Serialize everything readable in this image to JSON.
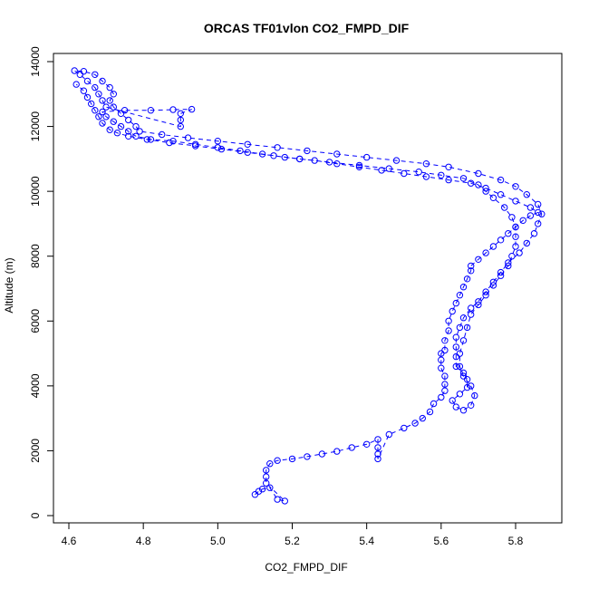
{
  "chart_data": {
    "type": "scatter",
    "title": "ORCAS TF01vlon CO2_FMPD_DIF",
    "xlabel": "CO2_FMPD_DIF",
    "ylabel": "Altitude (m)",
    "xlim": [
      4.6,
      5.88
    ],
    "ylim": [
      -200,
      14200
    ],
    "x_ticks": [
      4.6,
      4.8,
      5.0,
      5.2,
      5.4,
      5.6,
      5.8
    ],
    "x_tick_labels": [
      "4.6",
      "4.8",
      "5.0",
      "5.2",
      "5.4",
      "5.6",
      "5.8"
    ],
    "y_ticks": [
      0,
      2000,
      4000,
      6000,
      8000,
      10000,
      12000,
      14000
    ],
    "y_tick_labels": [
      "0",
      "2000",
      "4000",
      "6000",
      "8000",
      "10000",
      "12000",
      "14000"
    ],
    "marker": "open-circle",
    "color": "#0000ff",
    "connected_dashed": true,
    "grid": false,
    "legend": "none",
    "series": [
      {
        "points": [
          [
            5.1,
            650
          ],
          [
            5.11,
            750
          ],
          [
            5.12,
            820
          ],
          [
            5.14,
            860
          ],
          [
            5.16,
            500
          ],
          [
            5.18,
            450
          ],
          [
            5.13,
            1000
          ],
          [
            5.13,
            1200
          ],
          [
            5.13,
            1400
          ],
          [
            5.14,
            1600
          ],
          [
            5.16,
            1700
          ],
          [
            5.2,
            1750
          ],
          [
            5.24,
            1820
          ],
          [
            5.28,
            1900
          ],
          [
            5.32,
            1980
          ],
          [
            5.36,
            2100
          ],
          [
            5.4,
            2200
          ],
          [
            5.43,
            2350
          ],
          [
            5.43,
            2100
          ],
          [
            5.43,
            1900
          ],
          [
            5.43,
            1750
          ],
          [
            5.46,
            2500
          ],
          [
            5.5,
            2700
          ],
          [
            5.53,
            2850
          ],
          [
            5.55,
            3000
          ],
          [
            5.57,
            3200
          ],
          [
            5.58,
            3450
          ],
          [
            5.6,
            3650
          ],
          [
            5.61,
            3850
          ],
          [
            5.61,
            4050
          ],
          [
            5.61,
            4300
          ],
          [
            5.6,
            4550
          ],
          [
            5.6,
            4800
          ],
          [
            5.6,
            5000
          ],
          [
            5.61,
            5100
          ],
          [
            5.61,
            5400
          ],
          [
            5.62,
            5700
          ],
          [
            5.62,
            6000
          ],
          [
            5.63,
            6300
          ],
          [
            5.64,
            6550
          ],
          [
            5.65,
            6800
          ],
          [
            5.66,
            7050
          ],
          [
            5.67,
            7300
          ],
          [
            5.68,
            7550
          ],
          [
            5.68,
            7700
          ],
          [
            5.7,
            7900
          ],
          [
            5.72,
            8100
          ],
          [
            5.74,
            8300
          ],
          [
            5.76,
            8500
          ],
          [
            5.78,
            8700
          ],
          [
            5.8,
            8900
          ],
          [
            5.82,
            9100
          ],
          [
            5.84,
            9250
          ],
          [
            5.86,
            9350
          ],
          [
            5.84,
            9500
          ],
          [
            5.8,
            9700
          ],
          [
            5.76,
            9900
          ],
          [
            5.72,
            10100
          ],
          [
            5.68,
            10250
          ],
          [
            5.62,
            10350
          ],
          [
            5.56,
            10450
          ],
          [
            5.5,
            10550
          ],
          [
            5.44,
            10650
          ],
          [
            5.38,
            10750
          ],
          [
            5.32,
            10850
          ],
          [
            5.26,
            10950
          ],
          [
            5.22,
            11000
          ],
          [
            5.18,
            11050
          ],
          [
            5.12,
            11150
          ],
          [
            5.06,
            11250
          ],
          [
            5.0,
            11350
          ],
          [
            4.94,
            11450
          ],
          [
            4.88,
            11550
          ],
          [
            4.82,
            11600
          ],
          [
            4.78,
            11700
          ],
          [
            4.76,
            11850
          ],
          [
            4.74,
            12000
          ],
          [
            4.72,
            12150
          ],
          [
            4.7,
            12300
          ],
          [
            4.69,
            12450
          ],
          [
            4.75,
            12500
          ],
          [
            4.82,
            12500
          ],
          [
            4.88,
            12520
          ],
          [
            4.93,
            12530
          ],
          [
            4.9,
            12400
          ],
          [
            4.9,
            12200
          ],
          [
            4.9,
            12000
          ],
          [
            4.7,
            12600
          ],
          [
            4.69,
            12800
          ],
          [
            4.68,
            13000
          ],
          [
            4.67,
            13200
          ],
          [
            4.65,
            13400
          ],
          [
            4.63,
            13600
          ],
          [
            4.615,
            13720
          ],
          [
            4.64,
            13700
          ],
          [
            4.67,
            13600
          ],
          [
            4.69,
            13400
          ],
          [
            4.71,
            13200
          ],
          [
            4.72,
            13000
          ],
          [
            4.71,
            12800
          ],
          [
            4.72,
            12600
          ],
          [
            4.74,
            12400
          ],
          [
            4.76,
            12200
          ],
          [
            4.78,
            12000
          ],
          [
            4.79,
            11850
          ],
          [
            4.85,
            11750
          ],
          [
            4.92,
            11650
          ],
          [
            5.0,
            11550
          ],
          [
            5.08,
            11450
          ],
          [
            5.16,
            11350
          ],
          [
            5.24,
            11250
          ],
          [
            5.32,
            11150
          ],
          [
            5.4,
            11050
          ],
          [
            5.48,
            10950
          ],
          [
            5.56,
            10850
          ],
          [
            5.62,
            10750
          ],
          [
            5.7,
            10550
          ],
          [
            5.76,
            10350
          ],
          [
            5.8,
            10150
          ],
          [
            5.83,
            9900
          ],
          [
            5.86,
            9600
          ],
          [
            5.87,
            9300
          ],
          [
            5.86,
            9000
          ],
          [
            5.85,
            8700
          ],
          [
            5.83,
            8400
          ],
          [
            5.81,
            8100
          ],
          [
            5.78,
            7800
          ],
          [
            5.76,
            7500
          ],
          [
            5.74,
            7200
          ],
          [
            5.72,
            6900
          ],
          [
            5.7,
            6600
          ],
          [
            5.68,
            6400
          ],
          [
            5.66,
            6100
          ],
          [
            5.65,
            5800
          ],
          [
            5.64,
            5500
          ],
          [
            5.64,
            5200
          ],
          [
            5.64,
            4900
          ],
          [
            5.64,
            4600
          ],
          [
            5.66,
            4400
          ],
          [
            5.67,
            4200
          ],
          [
            5.67,
            3950
          ],
          [
            5.65,
            3750
          ],
          [
            5.63,
            3550
          ],
          [
            5.64,
            3350
          ],
          [
            5.66,
            3250
          ],
          [
            5.68,
            3400
          ],
          [
            5.69,
            3700
          ],
          [
            5.68,
            4000
          ],
          [
            5.66,
            4300
          ],
          [
            5.65,
            4600
          ],
          [
            5.65,
            5000
          ],
          [
            5.66,
            5400
          ],
          [
            5.67,
            5800
          ],
          [
            5.68,
            6200
          ],
          [
            5.7,
            6500
          ],
          [
            5.72,
            6800
          ],
          [
            5.74,
            7100
          ],
          [
            5.76,
            7400
          ],
          [
            5.78,
            7700
          ],
          [
            5.79,
            8000
          ],
          [
            5.8,
            8300
          ],
          [
            5.8,
            8600
          ],
          [
            5.8,
            8900
          ],
          [
            5.79,
            9200
          ],
          [
            5.77,
            9500
          ],
          [
            5.74,
            9800
          ],
          [
            5.72,
            10000
          ],
          [
            5.7,
            10200
          ],
          [
            5.66,
            10400
          ],
          [
            5.6,
            10500
          ],
          [
            5.54,
            10600
          ],
          [
            5.46,
            10700
          ],
          [
            5.38,
            10800
          ],
          [
            5.3,
            10900
          ],
          [
            5.22,
            11000
          ],
          [
            5.15,
            11100
          ],
          [
            5.08,
            11200
          ],
          [
            5.01,
            11300
          ],
          [
            4.94,
            11400
          ],
          [
            4.87,
            11500
          ],
          [
            4.81,
            11600
          ],
          [
            4.76,
            11700
          ],
          [
            4.73,
            11800
          ],
          [
            4.71,
            11900
          ],
          [
            4.69,
            12100
          ],
          [
            4.68,
            12300
          ],
          [
            4.67,
            12500
          ],
          [
            4.66,
            12700
          ],
          [
            4.65,
            12900
          ],
          [
            4.64,
            13100
          ],
          [
            4.62,
            13300
          ]
        ]
      }
    ]
  }
}
